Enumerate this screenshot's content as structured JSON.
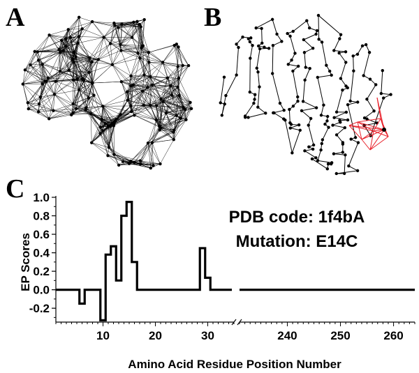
{
  "panels": {
    "a": "A",
    "b": "B",
    "c": "C"
  },
  "annotation": {
    "line1": "PDB code: 1f4bA",
    "line2": "Mutation: E14C"
  },
  "colors": {
    "network": "#000000",
    "highlight": "#e8202a",
    "line": "#000000"
  },
  "chart_data": {
    "type": "line",
    "xlabel": "Amino Acid Residue Position Number",
    "ylabel": "EP Scores",
    "ylim": [
      -0.35,
      1.0
    ],
    "yticks": [
      -0.2,
      0.0,
      0.2,
      0.4,
      0.6,
      0.8,
      1.0
    ],
    "ytick_labels": [
      "-0.2",
      "0.0",
      "0.2",
      "0.4",
      "0.6",
      "0.8",
      "1.0"
    ],
    "broken_x_axis": true,
    "segments": [
      {
        "xlim": [
          1,
          35
        ],
        "xticks": [
          10,
          20,
          30
        ],
        "xtick_labels": [
          "10",
          "20",
          "30"
        ]
      },
      {
        "xlim": [
          231,
          264
        ],
        "xticks": [
          240,
          250,
          260
        ],
        "xtick_labels": [
          "240",
          "250",
          "260"
        ]
      }
    ],
    "series": [
      {
        "x": [
          1,
          2,
          3,
          4,
          5,
          6,
          7,
          8,
          9,
          10,
          11,
          12,
          13,
          14,
          15,
          16,
          17,
          18,
          19,
          20,
          21,
          22,
          23,
          24,
          25,
          26,
          27,
          28,
          29,
          30,
          31,
          32,
          33,
          34,
          35
        ],
        "values": [
          0,
          0,
          0,
          0,
          0,
          -0.15,
          0,
          0,
          0,
          -0.33,
          0.38,
          0.47,
          0.1,
          0.8,
          0.95,
          0.3,
          0,
          0,
          0,
          0,
          0,
          0,
          0,
          0,
          0,
          0,
          0,
          0,
          0.45,
          0.13,
          0,
          0,
          0,
          0,
          0
        ]
      },
      {
        "x": [
          231,
          264
        ],
        "values": [
          0,
          0
        ]
      }
    ]
  }
}
